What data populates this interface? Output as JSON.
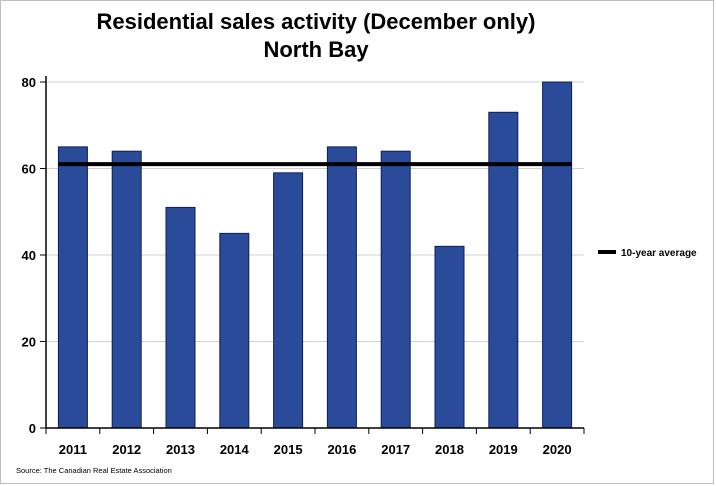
{
  "chart_data": {
    "type": "bar",
    "title": "Residential sales activity (December only)",
    "subtitle": "North Bay",
    "categories": [
      "2011",
      "2012",
      "2013",
      "2014",
      "2015",
      "2016",
      "2017",
      "2018",
      "2019",
      "2020"
    ],
    "series": [
      {
        "values": [
          65,
          64,
          51,
          45,
          59,
          65,
          64,
          42,
          73,
          80
        ],
        "color": "#2a4a9a"
      }
    ],
    "reference_line": {
      "name": "10-year average",
      "value": 61,
      "color": "#000000"
    },
    "ylim": [
      0,
      80
    ],
    "yticks": [
      "0",
      "20",
      "40",
      "60",
      "80"
    ],
    "grid": true,
    "legend_position": "right"
  },
  "source_note": "Source: The Canadian Real Estate Association"
}
